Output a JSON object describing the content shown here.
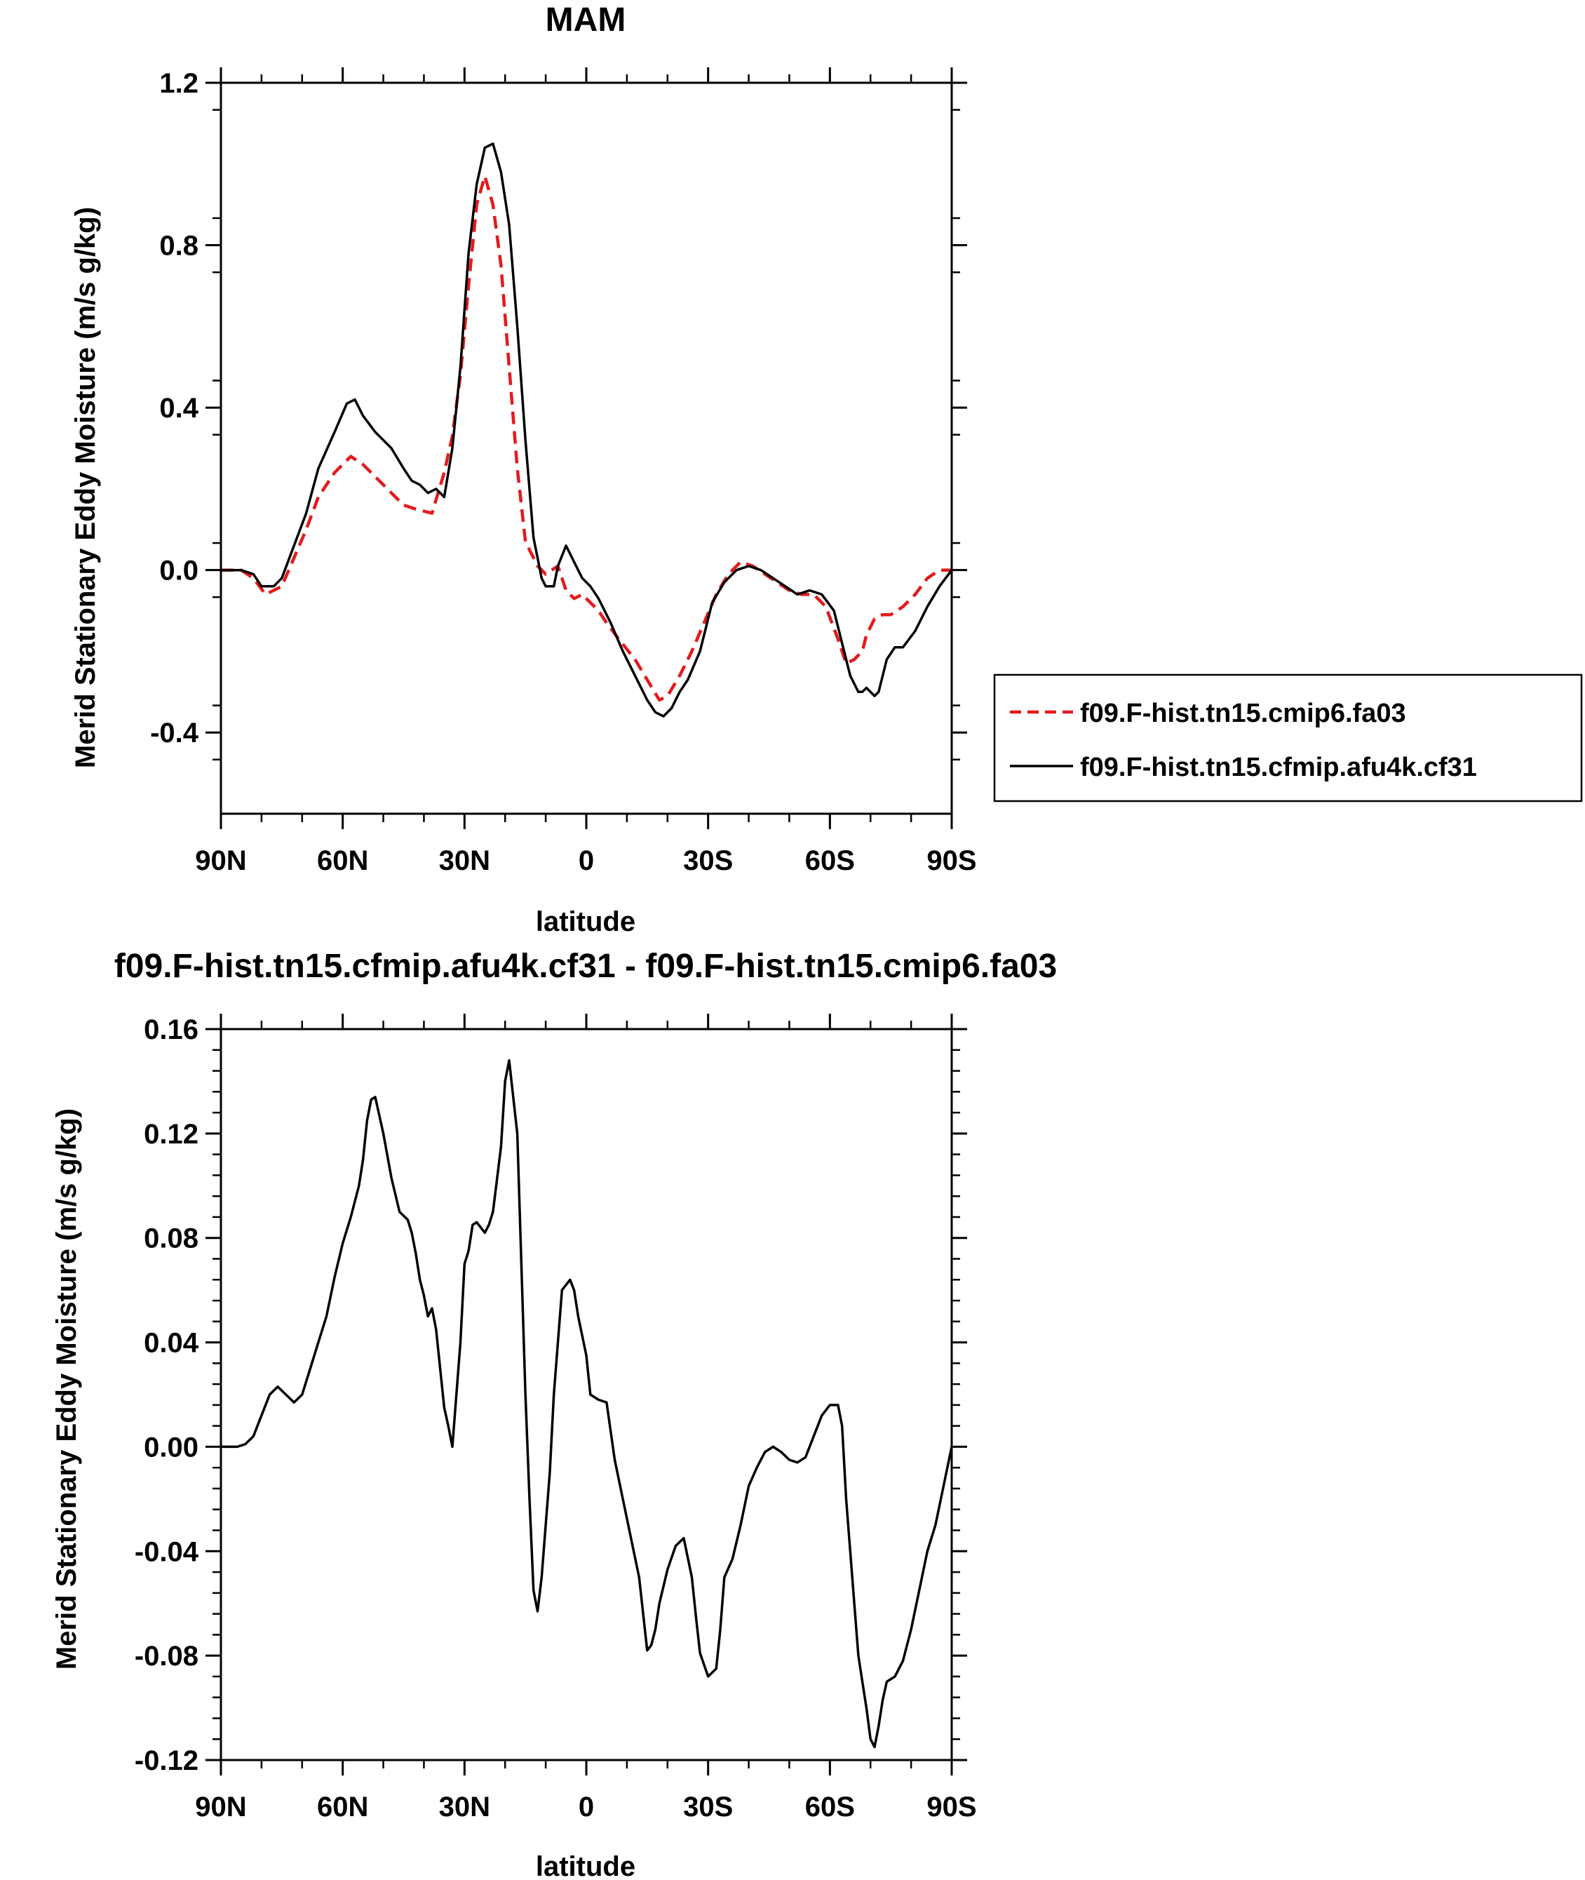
{
  "chart_data": [
    {
      "type": "line",
      "title": "MAM",
      "xlabel": "latitude",
      "ylabel": "Merid Stationary Eddy Moisture (m/s g/kg)",
      "xlim": [
        90,
        -90
      ],
      "ylim": [
        -0.6,
        1.2
      ],
      "x_ticks": [
        90,
        60,
        30,
        0,
        -30,
        -60,
        -90
      ],
      "x_tick_labels": [
        "90N",
        "60N",
        "30N",
        "0",
        "30S",
        "60S",
        "90S"
      ],
      "y_ticks": [
        1.2,
        0.8,
        0.4,
        0.0,
        -0.4
      ],
      "y_tick_labels": [
        "1.2",
        "0.8",
        "0.4",
        "0.0",
        "-0.4"
      ],
      "legend": {
        "placement": "right",
        "entries": [
          "f09.F-hist.tn15.cmip6.fa03",
          "f09.F-hist.tn15.cfmip.afu4k.cf31"
        ]
      },
      "series": [
        {
          "name": "f09.F-hist.tn15.cmip6.fa03",
          "color": "#e41a1c",
          "dash": "dashed",
          "x": [
            90,
            85,
            82,
            79,
            75,
            72,
            69,
            66,
            62,
            58,
            55,
            52,
            48,
            45,
            42,
            38,
            35,
            33,
            31,
            29,
            27,
            25,
            23,
            21,
            19,
            17,
            15,
            13,
            12,
            10,
            7,
            5,
            3,
            1,
            -1,
            -3,
            -5,
            -8,
            -12,
            -15,
            -18,
            -20,
            -23,
            -26,
            -29,
            -32,
            -35,
            -38,
            -41,
            -44,
            -47,
            -50,
            -53,
            -56,
            -59,
            -62,
            -64,
            -66,
            -68,
            -69,
            -71,
            -73,
            -75,
            -78,
            -81,
            -84,
            -87,
            -90
          ],
          "y": [
            0.0,
            0.0,
            -0.02,
            -0.06,
            -0.04,
            0.03,
            0.1,
            0.18,
            0.24,
            0.28,
            0.26,
            0.23,
            0.19,
            0.16,
            0.15,
            0.14,
            0.24,
            0.33,
            0.48,
            0.7,
            0.9,
            0.97,
            0.9,
            0.75,
            0.5,
            0.25,
            0.07,
            0.03,
            0.01,
            -0.01,
            0.01,
            -0.05,
            -0.07,
            -0.06,
            -0.08,
            -0.1,
            -0.13,
            -0.17,
            -0.22,
            -0.27,
            -0.32,
            -0.31,
            -0.26,
            -0.2,
            -0.13,
            -0.06,
            -0.01,
            0.02,
            0.01,
            -0.01,
            -0.03,
            -0.05,
            -0.06,
            -0.06,
            -0.09,
            -0.17,
            -0.23,
            -0.22,
            -0.2,
            -0.16,
            -0.12,
            -0.11,
            -0.11,
            -0.09,
            -0.06,
            -0.02,
            0.0,
            0.0
          ]
        },
        {
          "name": "f09.F-hist.tn15.cfmip.afu4k.cf31",
          "color": "#000000",
          "dash": "solid",
          "x": [
            90,
            85,
            82,
            80,
            77,
            75,
            72,
            69,
            66,
            62,
            59,
            57,
            55,
            52,
            48,
            45,
            43,
            41,
            39,
            37,
            35,
            33,
            31,
            29,
            27,
            25,
            23,
            21,
            19,
            17,
            15,
            13,
            11,
            10,
            8,
            7,
            5,
            3,
            1,
            -1,
            -3,
            -6,
            -9,
            -12,
            -15,
            -17,
            -19,
            -21,
            -23,
            -25,
            -28,
            -31,
            -34,
            -37,
            -40,
            -43,
            -46,
            -49,
            -52,
            -55,
            -58,
            -61,
            -63,
            -65,
            -67,
            -68,
            -69,
            -71,
            -72,
            -74,
            -76,
            -78,
            -81,
            -84,
            -87,
            -90
          ],
          "y": [
            0.0,
            0.0,
            -0.01,
            -0.04,
            -0.04,
            -0.02,
            0.06,
            0.14,
            0.25,
            0.34,
            0.41,
            0.42,
            0.38,
            0.34,
            0.3,
            0.25,
            0.22,
            0.21,
            0.19,
            0.2,
            0.18,
            0.3,
            0.5,
            0.78,
            0.95,
            1.04,
            1.05,
            0.98,
            0.85,
            0.6,
            0.32,
            0.08,
            -0.02,
            -0.04,
            -0.04,
            0.01,
            0.06,
            0.02,
            -0.02,
            -0.04,
            -0.07,
            -0.13,
            -0.2,
            -0.26,
            -0.32,
            -0.35,
            -0.36,
            -0.34,
            -0.3,
            -0.27,
            -0.2,
            -0.08,
            -0.03,
            0.0,
            0.01,
            0.0,
            -0.02,
            -0.04,
            -0.06,
            -0.05,
            -0.06,
            -0.1,
            -0.18,
            -0.26,
            -0.3,
            -0.3,
            -0.29,
            -0.31,
            -0.3,
            -0.22,
            -0.19,
            -0.19,
            -0.15,
            -0.09,
            -0.04,
            0.0
          ]
        }
      ]
    },
    {
      "type": "line",
      "title": "f09.F-hist.tn15.cfmip.afu4k.cf31 - f09.F-hist.tn15.cmip6.fa03",
      "xlabel": "latitude",
      "ylabel": "Merid Stationary Eddy Moisture (m/s g/kg)",
      "xlim": [
        90,
        -90
      ],
      "ylim": [
        -0.12,
        0.16
      ],
      "x_ticks": [
        90,
        60,
        30,
        0,
        -30,
        -60,
        -90
      ],
      "x_tick_labels": [
        "90N",
        "60N",
        "30N",
        "0",
        "30S",
        "60S",
        "90S"
      ],
      "y_ticks": [
        0.16,
        0.12,
        0.08,
        0.04,
        0.0,
        -0.04,
        -0.08,
        -0.12
      ],
      "y_tick_labels": [
        "0.16",
        "0.12",
        "0.08",
        "0.04",
        "0.00",
        "-0.04",
        "-0.08",
        "-0.12"
      ],
      "series": [
        {
          "name": "f09.F-hist.tn15.cfmip.afu4k.cf31 - f09.F-hist.tn15.cmip6.fa03",
          "color": "#000000",
          "dash": "solid",
          "x": [
            90,
            88,
            86,
            84,
            82,
            80,
            78,
            76,
            74,
            72,
            70,
            68,
            66,
            64,
            62,
            60,
            58,
            56,
            55,
            54,
            53,
            52,
            50,
            48,
            46,
            44,
            43,
            42,
            41,
            40,
            39,
            38,
            37,
            36,
            35,
            34,
            33,
            31,
            30,
            29,
            28,
            27,
            26,
            25,
            24,
            23,
            21,
            20,
            19,
            17,
            16,
            15,
            14,
            13,
            12,
            11,
            10,
            9,
            8,
            6,
            4,
            3,
            2,
            0,
            -1,
            -3,
            -5,
            -7,
            -9,
            -11,
            -13,
            -15,
            -16,
            -17,
            -18,
            -20,
            -22,
            -24,
            -26,
            -27,
            -28,
            -30,
            -32,
            -33,
            -34,
            -36,
            -38,
            -40,
            -42,
            -44,
            -46,
            -48,
            -50,
            -52,
            -54,
            -56,
            -58,
            -60,
            -62,
            -63,
            -64,
            -65,
            -66,
            -67,
            -68,
            -69,
            -70,
            -71,
            -72,
            -73,
            -74,
            -76,
            -78,
            -80,
            -82,
            -84,
            -86,
            -88,
            -90
          ],
          "y": [
            0.0,
            0.0,
            0.0,
            0.001,
            0.004,
            0.012,
            0.02,
            0.023,
            0.02,
            0.017,
            0.02,
            0.03,
            0.04,
            0.05,
            0.065,
            0.078,
            0.088,
            0.1,
            0.11,
            0.125,
            0.133,
            0.134,
            0.12,
            0.103,
            0.09,
            0.087,
            0.082,
            0.074,
            0.064,
            0.058,
            0.05,
            0.053,
            0.045,
            0.03,
            0.015,
            0.008,
            0.0,
            0.04,
            0.07,
            0.075,
            0.085,
            0.086,
            0.084,
            0.082,
            0.085,
            0.09,
            0.115,
            0.14,
            0.148,
            0.12,
            0.07,
            0.02,
            -0.02,
            -0.055,
            -0.063,
            -0.05,
            -0.03,
            -0.01,
            0.02,
            0.06,
            0.064,
            0.06,
            0.05,
            0.035,
            0.02,
            0.018,
            0.017,
            -0.005,
            -0.02,
            -0.035,
            -0.05,
            -0.078,
            -0.076,
            -0.07,
            -0.06,
            -0.047,
            -0.038,
            -0.035,
            -0.05,
            -0.065,
            -0.079,
            -0.088,
            -0.085,
            -0.07,
            -0.05,
            -0.043,
            -0.03,
            -0.015,
            -0.008,
            -0.002,
            0.0,
            -0.002,
            -0.005,
            -0.006,
            -0.004,
            0.004,
            0.012,
            0.016,
            0.016,
            0.008,
            -0.02,
            -0.04,
            -0.06,
            -0.08,
            -0.09,
            -0.1,
            -0.112,
            -0.115,
            -0.107,
            -0.097,
            -0.09,
            -0.088,
            -0.082,
            -0.07,
            -0.055,
            -0.04,
            -0.03,
            -0.015,
            0.0
          ]
        }
      ]
    }
  ]
}
